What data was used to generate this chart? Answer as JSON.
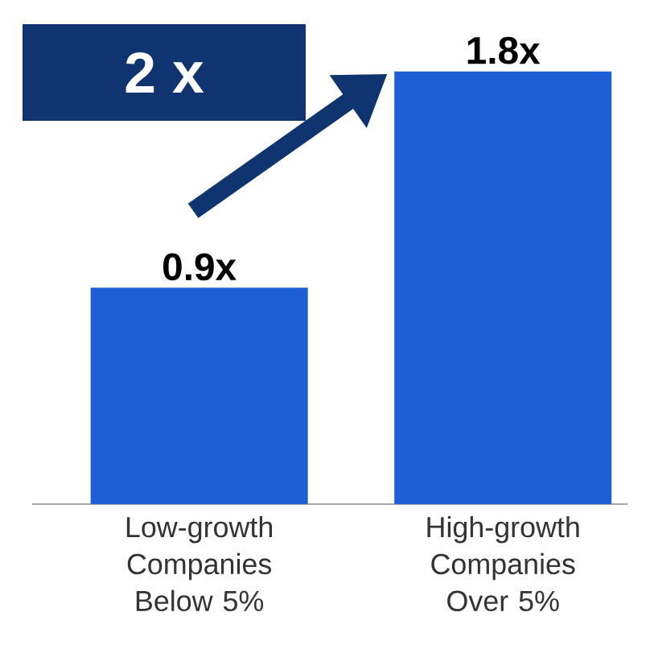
{
  "chart_data": {
    "type": "bar",
    "categories": [
      "Low-growth Companies Below 5%",
      "High-growth Companies Over 5%"
    ],
    "values": [
      0.9,
      1.8
    ],
    "value_labels": [
      "0.9x",
      "1.8x"
    ],
    "color": "#1f5fd6",
    "annotations": [
      "2 x"
    ]
  }
}
